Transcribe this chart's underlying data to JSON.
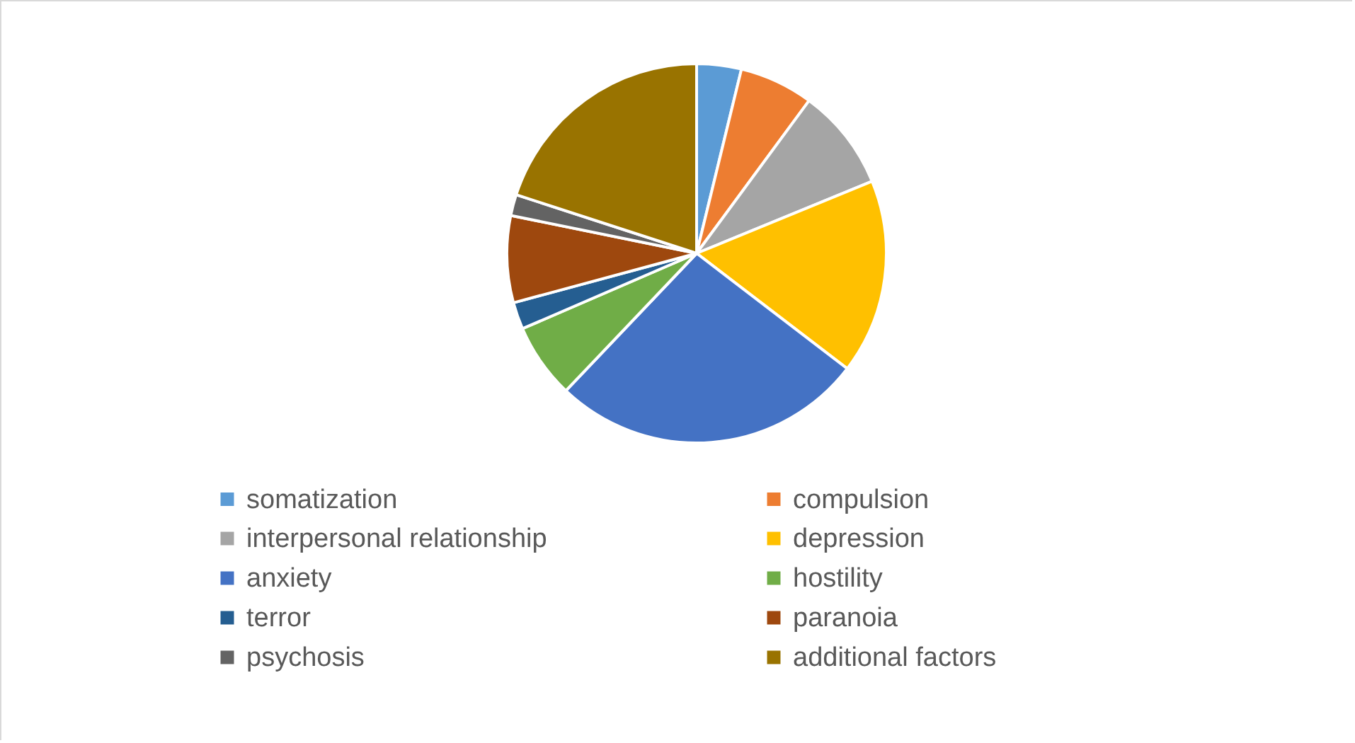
{
  "chart_data": {
    "type": "pie",
    "categories": [
      "somatization",
      "compulsion",
      "interpersonal relationship",
      "depression",
      "anxiety",
      "hostility",
      "terror",
      "paranoia",
      "psychosis",
      "additional factors"
    ],
    "values": [
      3.8,
      6.3,
      8.7,
      16.6,
      26.7,
      6.4,
      2.3,
      7.4,
      1.8,
      20.0
    ],
    "colors": [
      "#5b9bd5",
      "#ed7d31",
      "#a5a5a5",
      "#ffc000",
      "#4472c4",
      "#70ad47",
      "#255e91",
      "#9e480e",
      "#636363",
      "#997300"
    ],
    "legend": "bottom"
  }
}
